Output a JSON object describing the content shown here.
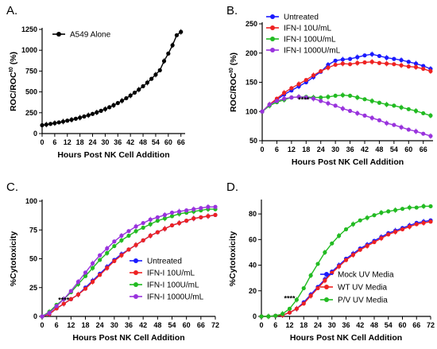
{
  "chart_data": [
    {
      "panel": "A.",
      "type": "line",
      "xlabel": "Hours Post NK Cell Addition",
      "ylabel": "ROC/ROC",
      "ylabel_sup": "t0",
      "ylabel_suffix": " (%)",
      "xlim": [
        0,
        68
      ],
      "ylim": [
        0,
        1250
      ],
      "xticks": [
        0,
        6,
        12,
        18,
        24,
        30,
        36,
        42,
        48,
        54,
        60,
        66
      ],
      "yticks": [
        0,
        250,
        500,
        750,
        1000,
        1250
      ],
      "legend": "top-left",
      "series": [
        {
          "name": "A549 Alone",
          "color": "#000000",
          "x": [
            0,
            2,
            4,
            6,
            8,
            10,
            12,
            14,
            16,
            18,
            20,
            22,
            24,
            26,
            28,
            30,
            32,
            34,
            36,
            38,
            40,
            42,
            44,
            46,
            48,
            50,
            52,
            54,
            56,
            58,
            60,
            62,
            64,
            66
          ],
          "y": [
            100,
            108,
            116,
            125,
            134,
            144,
            155,
            166,
            178,
            191,
            205,
            220,
            236,
            254,
            273,
            294,
            316,
            340,
            366,
            394,
            424,
            456,
            491,
            528,
            568,
            611,
            657,
            707,
            760,
            870,
            960,
            1060,
            1180,
            1220
          ]
        }
      ]
    },
    {
      "panel": "B.",
      "type": "line",
      "xlabel": "Hours Post NK Cell Addition",
      "ylabel": "ROC/ROC",
      "ylabel_sup": "t0",
      "ylabel_suffix": " (%)",
      "xlim": [
        0,
        70
      ],
      "ylim": [
        50,
        250
      ],
      "xticks": [
        0,
        6,
        12,
        18,
        24,
        30,
        36,
        42,
        48,
        54,
        60,
        66
      ],
      "yticks": [
        50,
        100,
        150,
        200,
        250
      ],
      "legend": "top-left",
      "annotations": [
        {
          "text": "****",
          "x": 17,
          "y": 116
        }
      ],
      "series": [
        {
          "name": "Untreated",
          "color": "#1a1aff",
          "x": [
            0,
            3,
            6,
            9,
            12,
            15,
            18,
            21,
            24,
            27,
            30,
            33,
            36,
            39,
            42,
            45,
            48,
            51,
            54,
            57,
            60,
            63,
            66,
            69
          ],
          "y": [
            100,
            111,
            120,
            129,
            136,
            143,
            150,
            159,
            168,
            180,
            187,
            189,
            190,
            193,
            196,
            198,
            195,
            192,
            190,
            188,
            185,
            182,
            178,
            173
          ]
        },
        {
          "name": "IFN-I 10U/mL",
          "color": "#ee2222",
          "x": [
            0,
            3,
            6,
            9,
            12,
            15,
            18,
            21,
            24,
            27,
            30,
            33,
            36,
            39,
            42,
            45,
            48,
            51,
            54,
            57,
            60,
            63,
            66,
            69
          ],
          "y": [
            100,
            112,
            122,
            132,
            140,
            147,
            154,
            162,
            169,
            175,
            180,
            182,
            181,
            183,
            184,
            185,
            183,
            182,
            181,
            179,
            177,
            176,
            173,
            169
          ]
        },
        {
          "name": "IFN-I 100U/mL",
          "color": "#22bb22",
          "x": [
            0,
            3,
            6,
            9,
            12,
            15,
            18,
            21,
            24,
            27,
            30,
            33,
            36,
            39,
            42,
            45,
            48,
            51,
            54,
            57,
            60,
            63,
            66,
            69
          ],
          "y": [
            100,
            110,
            116,
            120,
            124,
            125,
            125,
            124,
            124,
            125,
            127,
            128,
            127,
            124,
            121,
            118,
            115,
            112,
            110,
            107,
            104,
            101,
            97,
            93
          ]
        },
        {
          "name": "IFN-I 1000U/mL",
          "color": "#9933dd",
          "x": [
            0,
            3,
            6,
            9,
            12,
            15,
            18,
            21,
            24,
            27,
            30,
            33,
            36,
            39,
            42,
            45,
            48,
            51,
            54,
            57,
            60,
            63,
            66,
            69
          ],
          "y": [
            100,
            112,
            118,
            122,
            124,
            125,
            124,
            122,
            118,
            114,
            110,
            105,
            101,
            97,
            93,
            89,
            85,
            80,
            77,
            73,
            69,
            66,
            62,
            58
          ]
        }
      ]
    },
    {
      "panel": "C.",
      "type": "line",
      "xlabel": "Hours Post NK Cell Addition",
      "ylabel": "%Cytotoxicity",
      "xlim": [
        0,
        72
      ],
      "ylim": [
        0,
        100
      ],
      "xticks": [
        0,
        6,
        12,
        18,
        24,
        30,
        36,
        42,
        48,
        54,
        60,
        66,
        72
      ],
      "yticks": [
        0,
        25,
        50,
        75,
        100
      ],
      "legend": "bottom-right",
      "annotations": [
        {
          "text": "****",
          "x": 9,
          "y": 12
        }
      ],
      "series": [
        {
          "name": "Untreated",
          "color": "#1a1aff",
          "x": [
            0,
            3,
            6,
            9,
            12,
            15,
            18,
            21,
            24,
            27,
            30,
            33,
            36,
            39,
            42,
            45,
            48,
            51,
            54,
            57,
            60,
            63,
            66,
            69,
            72
          ],
          "y": [
            0,
            2,
            7,
            11,
            15,
            19,
            25,
            31,
            37,
            43,
            49,
            54,
            58,
            62,
            66,
            70,
            73,
            76,
            79,
            81,
            83,
            85,
            86,
            87,
            88
          ]
        },
        {
          "name": "IFN-I 10U/mL",
          "color": "#ee2222",
          "x": [
            0,
            3,
            6,
            9,
            12,
            15,
            18,
            21,
            24,
            27,
            30,
            33,
            36,
            39,
            42,
            45,
            48,
            51,
            54,
            57,
            60,
            63,
            66,
            69,
            72
          ],
          "y": [
            0,
            2,
            7,
            11,
            15,
            19,
            24,
            30,
            36,
            42,
            48,
            53,
            58,
            62,
            66,
            70,
            73,
            76,
            79,
            81,
            83,
            85,
            86,
            87,
            88
          ]
        },
        {
          "name": "IFN-I 100U/mL",
          "color": "#22bb22",
          "x": [
            0,
            3,
            6,
            9,
            12,
            15,
            18,
            21,
            24,
            27,
            30,
            33,
            36,
            39,
            42,
            45,
            48,
            51,
            54,
            57,
            60,
            63,
            66,
            69,
            72
          ],
          "y": [
            0,
            4,
            10,
            15,
            21,
            28,
            35,
            42,
            49,
            55,
            61,
            66,
            70,
            74,
            77,
            80,
            83,
            85,
            87,
            89,
            90,
            91,
            92,
            93,
            93
          ]
        },
        {
          "name": "IFN-I 1000U/mL",
          "color": "#9933dd",
          "x": [
            0,
            3,
            6,
            9,
            12,
            15,
            18,
            21,
            24,
            27,
            30,
            33,
            36,
            39,
            42,
            45,
            48,
            51,
            54,
            57,
            60,
            63,
            66,
            69,
            72
          ],
          "y": [
            0,
            3,
            9,
            15,
            22,
            30,
            38,
            46,
            53,
            59,
            65,
            70,
            74,
            78,
            81,
            84,
            86,
            88,
            90,
            91,
            92,
            93,
            94,
            95,
            95
          ]
        }
      ]
    },
    {
      "panel": "D.",
      "type": "line",
      "xlabel": "Hours Post NK Cell Addition",
      "ylabel": "%Cytotoxicity",
      "xlim": [
        0,
        72
      ],
      "ylim": [
        0,
        90
      ],
      "xticks": [
        0,
        6,
        12,
        18,
        24,
        30,
        36,
        42,
        48,
        54,
        60,
        66,
        72
      ],
      "yticks": [
        0,
        20,
        40,
        60,
        80
      ],
      "legend": "bottom-right",
      "annotations": [
        {
          "text": "****",
          "x": 12,
          "y": 12
        }
      ],
      "series": [
        {
          "name": "Mock UV Media",
          "color": "#1a1aff",
          "x": [
            0,
            3,
            6,
            9,
            12,
            15,
            18,
            21,
            24,
            27,
            30,
            33,
            36,
            39,
            42,
            45,
            48,
            51,
            54,
            57,
            60,
            63,
            66,
            69,
            72
          ],
          "y": [
            0,
            0,
            0.5,
            1,
            3,
            6,
            11,
            17,
            23,
            29,
            35,
            40,
            45,
            49,
            53,
            56,
            59,
            62,
            65,
            67,
            69,
            71,
            73,
            74,
            75
          ]
        },
        {
          "name": "WT UV Media",
          "color": "#ee2222",
          "x": [
            0,
            3,
            6,
            9,
            12,
            15,
            18,
            21,
            24,
            27,
            30,
            33,
            36,
            39,
            42,
            45,
            48,
            51,
            54,
            57,
            60,
            63,
            66,
            69,
            72
          ],
          "y": [
            0,
            0,
            0.5,
            1,
            3,
            6,
            10,
            16,
            22,
            28,
            34,
            39,
            44,
            48,
            52,
            55,
            58,
            61,
            64,
            66,
            68,
            70,
            72,
            73,
            74
          ]
        },
        {
          "name": "P/V UV Media",
          "color": "#22bb22",
          "x": [
            0,
            3,
            6,
            9,
            12,
            15,
            18,
            21,
            24,
            27,
            30,
            33,
            36,
            39,
            42,
            45,
            48,
            51,
            54,
            57,
            60,
            63,
            66,
            69,
            72
          ],
          "y": [
            0,
            0,
            0.5,
            2,
            6,
            13,
            22,
            32,
            41,
            50,
            57,
            63,
            68,
            72,
            75,
            77,
            79,
            81,
            82,
            83,
            84,
            85,
            85,
            86,
            86
          ]
        }
      ]
    }
  ]
}
